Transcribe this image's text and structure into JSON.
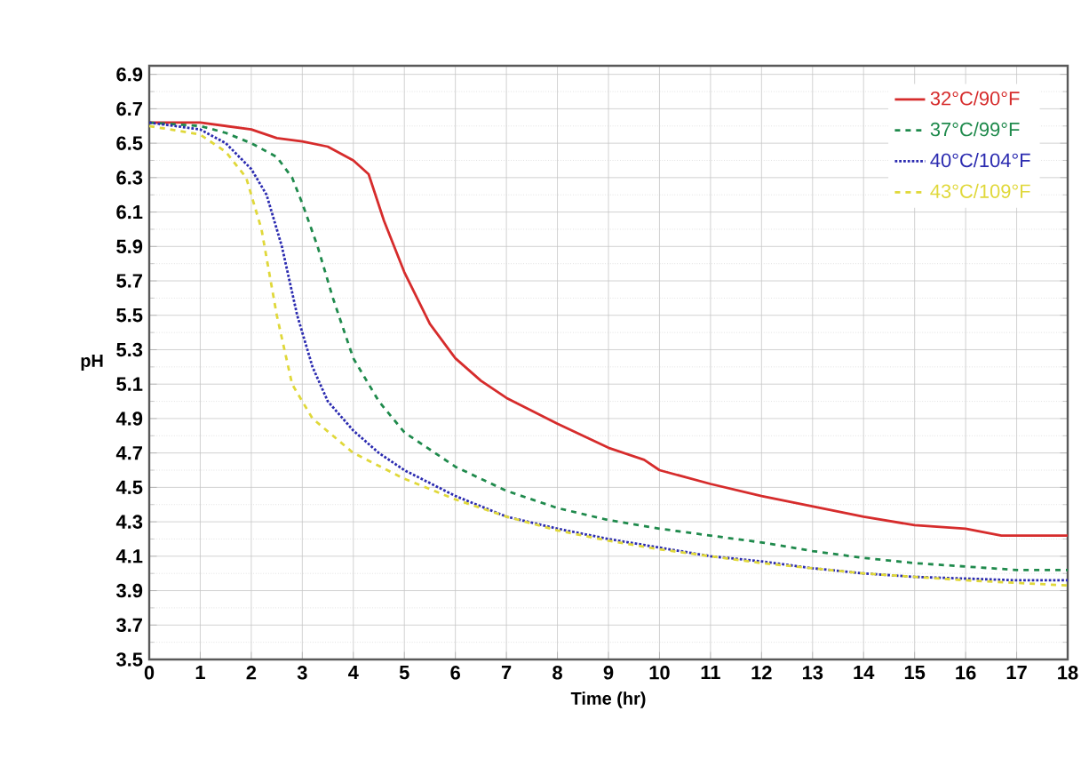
{
  "chart_data": {
    "type": "line",
    "xlabel": "Time (hr)",
    "ylabel": "pH",
    "xlim": [
      0,
      18
    ],
    "ylim": [
      3.5,
      6.95
    ],
    "xticks": [
      0,
      1,
      2,
      3,
      4,
      5,
      6,
      7,
      8,
      9,
      10,
      11,
      12,
      13,
      14,
      15,
      16,
      17,
      18
    ],
    "yticks": [
      3.5,
      3.7,
      3.9,
      4.1,
      4.3,
      4.5,
      4.7,
      4.9,
      5.1,
      5.3,
      5.5,
      5.7,
      5.9,
      6.1,
      6.3,
      6.5,
      6.7,
      6.9
    ],
    "grid": true,
    "legend": "top right",
    "marker": "none",
    "series": [
      {
        "name": "32°C/90°F",
        "color": "#d62c2c",
        "line_style": "solid",
        "x": [
          0,
          1,
          2,
          2.5,
          3,
          3.5,
          4,
          4.3,
          4.6,
          5,
          5.5,
          6,
          6.5,
          7,
          8,
          9,
          9.7,
          10,
          11,
          12,
          13,
          14,
          15,
          16,
          16.7,
          18
        ],
        "values": [
          6.62,
          6.62,
          6.58,
          6.53,
          6.51,
          6.48,
          6.4,
          6.32,
          6.05,
          5.75,
          5.45,
          5.25,
          5.12,
          5.02,
          4.87,
          4.73,
          4.66,
          4.6,
          4.52,
          4.45,
          4.39,
          4.33,
          4.28,
          4.26,
          4.22,
          4.22
        ]
      },
      {
        "name": "37°C/99°F",
        "color": "#1f8a4c",
        "line_style": "dashed",
        "x": [
          0,
          1,
          1.5,
          2,
          2.5,
          2.8,
          3,
          3.3,
          3.6,
          4,
          4.5,
          5,
          6,
          7,
          8,
          9,
          10,
          11,
          12,
          13,
          14,
          15,
          16,
          17,
          18
        ],
        "values": [
          6.62,
          6.6,
          6.56,
          6.5,
          6.42,
          6.3,
          6.15,
          5.9,
          5.6,
          5.25,
          5.0,
          4.82,
          4.62,
          4.48,
          4.38,
          4.31,
          4.26,
          4.22,
          4.18,
          4.13,
          4.09,
          4.06,
          4.04,
          4.02,
          4.02
        ]
      },
      {
        "name": "40°C/104°F",
        "color": "#2b2bb0",
        "line_style": "dotted",
        "x": [
          0,
          1,
          1.5,
          2,
          2.3,
          2.6,
          2.9,
          3.2,
          3.5,
          4,
          4.5,
          5,
          6,
          7,
          8,
          9,
          10,
          11,
          12,
          13,
          14,
          15,
          16,
          17,
          18
        ],
        "values": [
          6.62,
          6.58,
          6.5,
          6.35,
          6.2,
          5.9,
          5.5,
          5.2,
          5.0,
          4.83,
          4.7,
          4.6,
          4.45,
          4.33,
          4.26,
          4.2,
          4.15,
          4.1,
          4.07,
          4.03,
          4.0,
          3.98,
          3.97,
          3.96,
          3.96
        ]
      },
      {
        "name": "43°C/109°F",
        "color": "#e0d83a",
        "line_style": "dashed",
        "x": [
          0,
          1,
          1.5,
          1.9,
          2.2,
          2.5,
          2.8,
          3.2,
          3.6,
          4,
          5,
          6,
          7,
          8,
          9,
          10,
          12,
          14,
          16,
          18
        ],
        "values": [
          6.6,
          6.55,
          6.45,
          6.3,
          6.0,
          5.5,
          5.1,
          4.9,
          4.8,
          4.7,
          4.55,
          4.43,
          4.33,
          4.25,
          4.19,
          4.14,
          4.06,
          4.0,
          3.96,
          3.93
        ]
      }
    ]
  }
}
